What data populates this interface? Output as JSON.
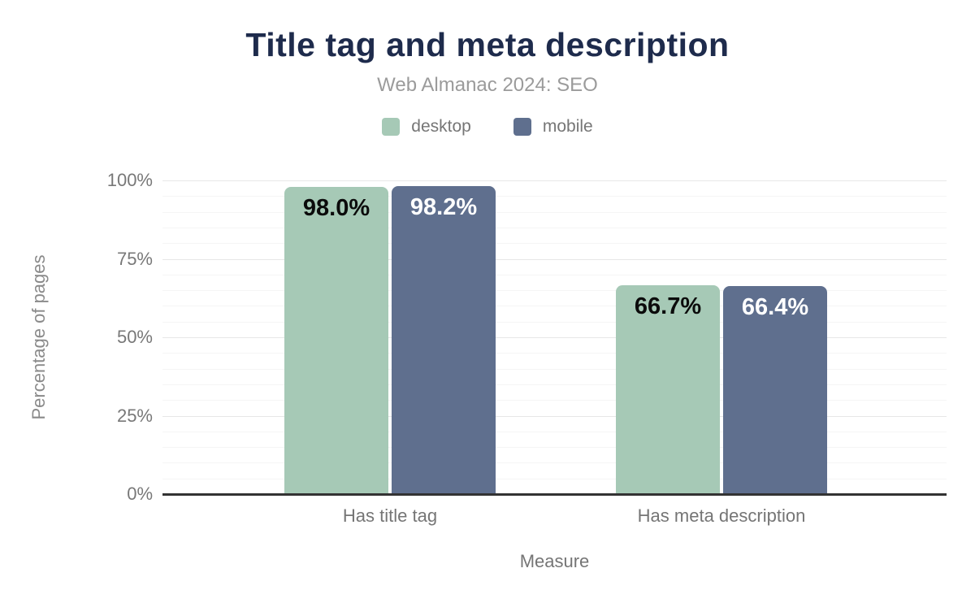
{
  "chart_data": {
    "type": "bar",
    "title": "Title tag and meta description",
    "subtitle": "Web Almanac 2024: SEO",
    "xlabel": "Measure",
    "ylabel": "Percentage of pages",
    "categories": [
      "Has title tag",
      "Has meta description"
    ],
    "series": [
      {
        "name": "desktop",
        "values": [
          98.0,
          66.7
        ],
        "color": "#a6c9b6",
        "label_color": "#0b0b0b"
      },
      {
        "name": "mobile",
        "values": [
          98.2,
          66.4
        ],
        "color": "#5f6f8e",
        "label_color": "#ffffff"
      }
    ],
    "value_label_format": "{value}%",
    "ylim": [
      0,
      100
    ],
    "y_ticks": [
      {
        "value": 0,
        "label": "0%"
      },
      {
        "value": 25,
        "label": "25%"
      },
      {
        "value": 50,
        "label": "50%"
      },
      {
        "value": 75,
        "label": "75%"
      },
      {
        "value": 100,
        "label": "100%"
      }
    ],
    "minor_grid_step": 5,
    "major_grid_step": 25,
    "grid": true,
    "legend_position": "top"
  },
  "colors": {
    "background": "#ffffff",
    "title": "#1e2b4c",
    "subtitle": "#9b9b9b",
    "axis_text": "#757575",
    "grid_minor": "#f5f5f5",
    "grid_major": "#e7e7e7",
    "axis_line": "#333333",
    "desktop": "#a6c9b6",
    "mobile": "#5f6f8e"
  }
}
